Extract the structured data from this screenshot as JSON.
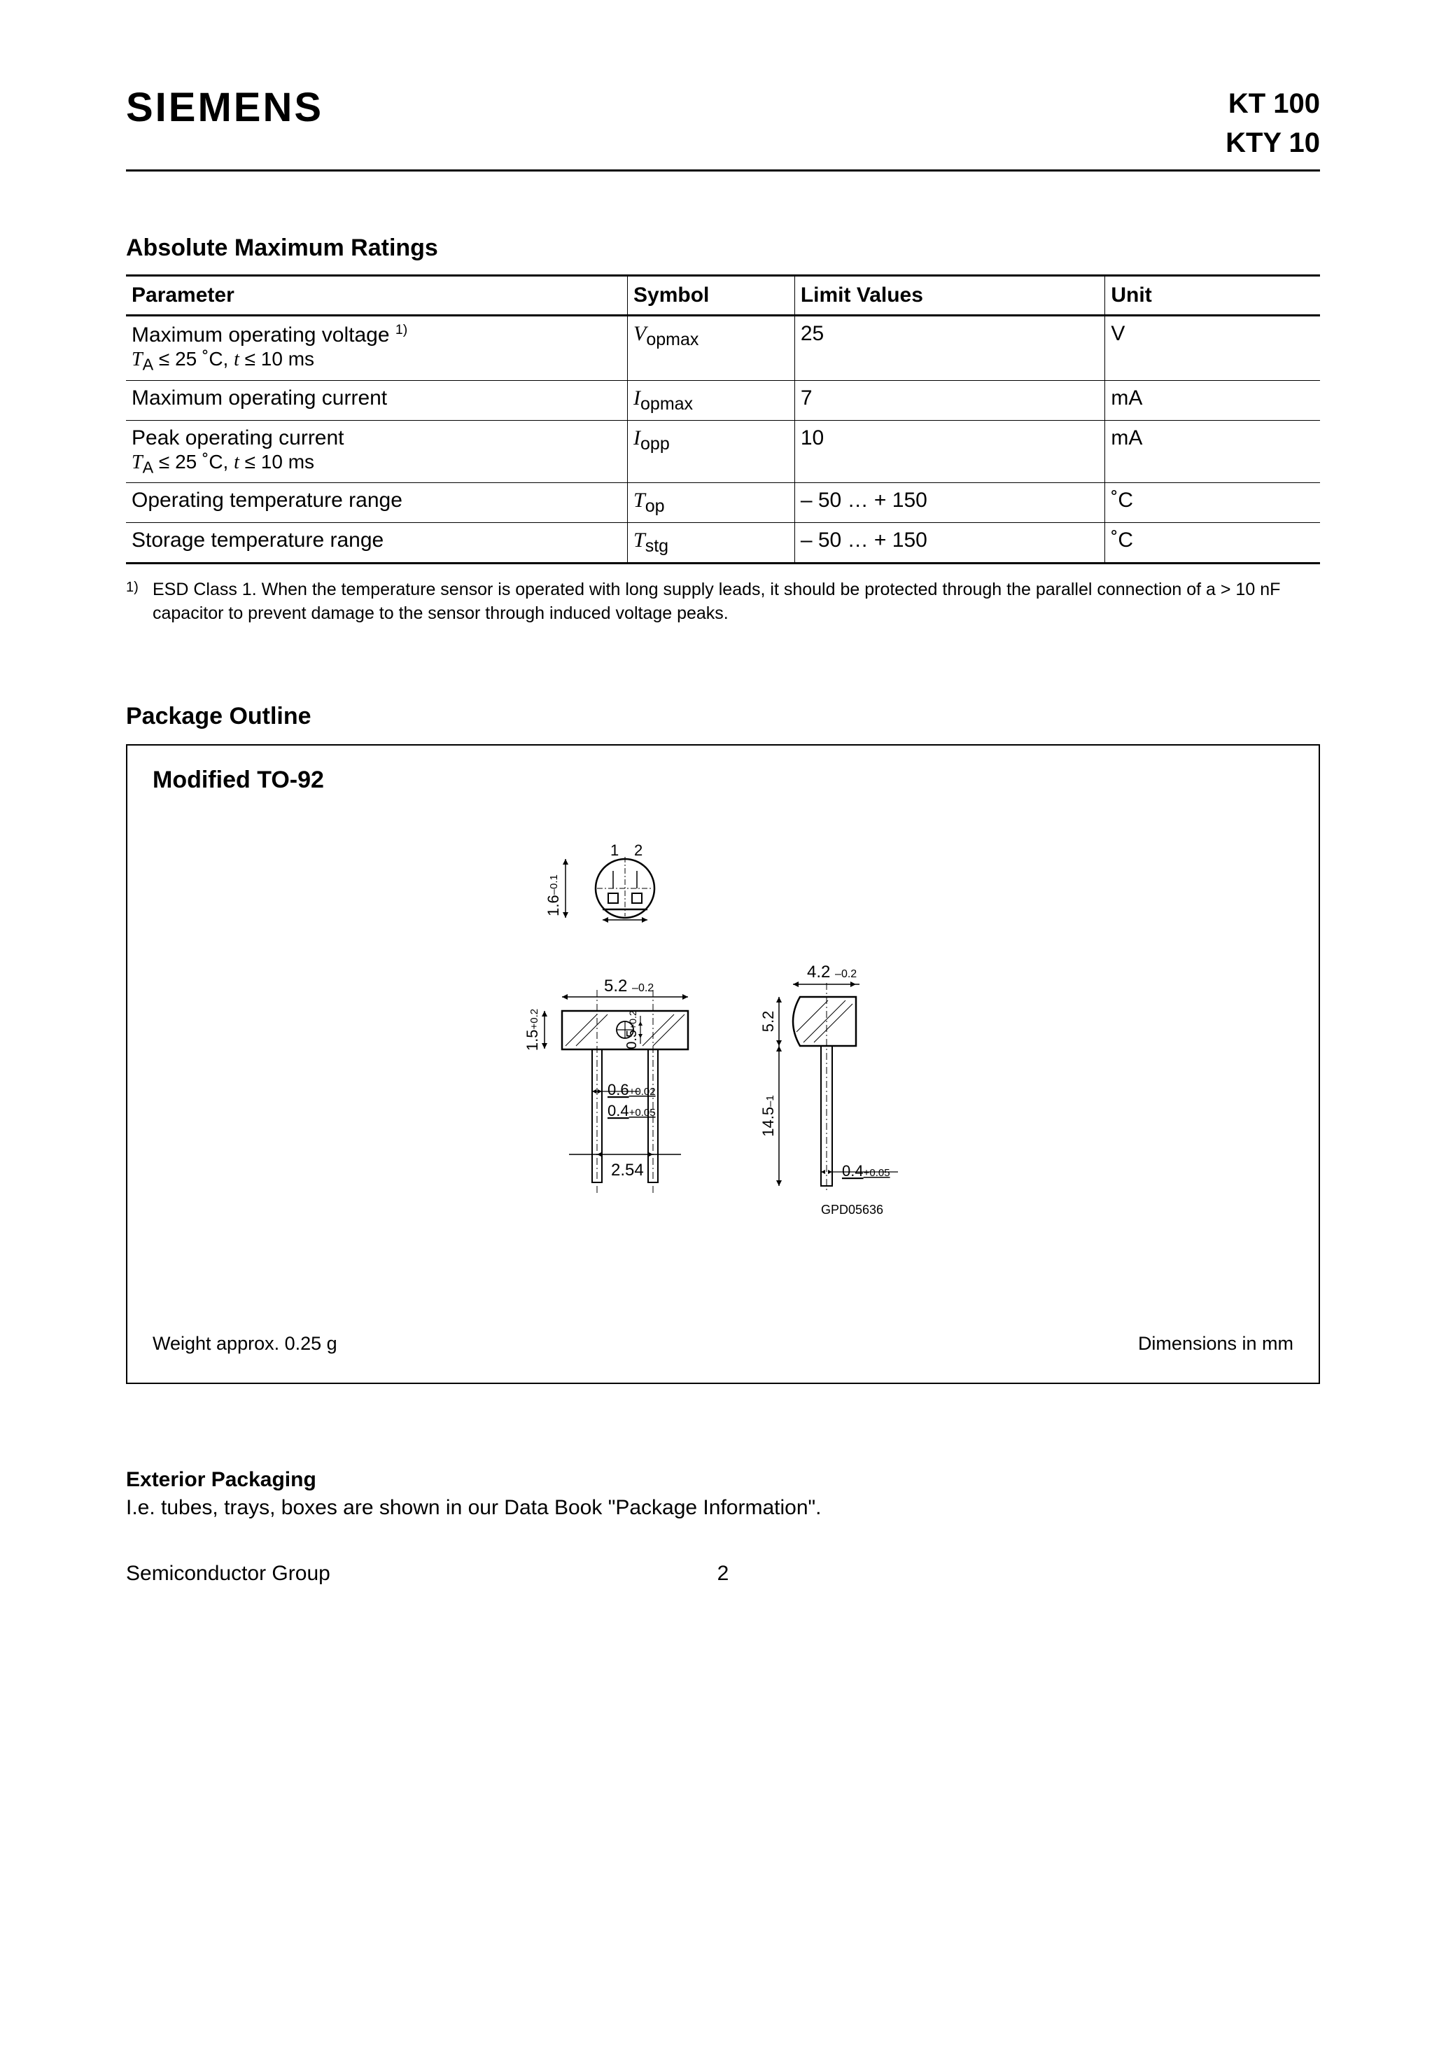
{
  "header": {
    "logo": "SIEMENS",
    "part1": "KT 100",
    "part2": "KTY 10"
  },
  "ratings": {
    "title": "Absolute Maximum Ratings",
    "columns": [
      "Parameter",
      "Symbol",
      "Limit Values",
      "Unit"
    ],
    "rows": [
      {
        "param_line1": "Maximum operating voltage ",
        "param_sup": "1)",
        "param_line2_html": "T<sub>A</sub> ≤ 25 ˚C, t ≤ 10 ms",
        "symbol_base": "V",
        "symbol_sub": "opmax",
        "limit": "25",
        "unit": "V"
      },
      {
        "param_line1": "Maximum operating current",
        "param_sup": "",
        "param_line2_html": "",
        "symbol_base": "I",
        "symbol_sub": "opmax",
        "limit": "7",
        "unit": "mA"
      },
      {
        "param_line1": "Peak operating current",
        "param_sup": "",
        "param_line2_html": "T<sub>A</sub> ≤ 25 ˚C, t ≤ 10 ms",
        "symbol_base": "I",
        "symbol_sub": "opp",
        "limit": "10",
        "unit": "mA"
      },
      {
        "param_line1": "Operating temperature range",
        "param_sup": "",
        "param_line2_html": "",
        "symbol_base": "T",
        "symbol_sub": "op",
        "limit": "– 50 … + 150",
        "unit": "˚C"
      },
      {
        "param_line1": "Storage temperature range",
        "param_sup": "",
        "param_line2_html": "",
        "symbol_base": "T",
        "symbol_sub": "stg",
        "limit": "– 50 … + 150",
        "unit": "˚C"
      }
    ],
    "footnote_num": "1)",
    "footnote_text": "ESD Class 1. When the temperature sensor is operated with long supply leads, it should be protected through the parallel connection of a > 10 nF capacitor to prevent damage to the sensor through induced voltage peaks."
  },
  "package": {
    "section_title": "Package Outline",
    "box_title": "Modified TO-92",
    "weight": "Weight approx. 0.25 g",
    "dim_note": "Dimensions in mm",
    "drawing": {
      "pin1": "1",
      "pin2": "2",
      "top_dim": "1.6",
      "top_tol": "–0.1",
      "body_w": "5.2",
      "body_w_tol": "–0.2",
      "body_h": "1.5",
      "body_h_tol": "+0.2",
      "center_h": "0.5",
      "center_h_tol": "+0.2",
      "lead_w1": "0.6",
      "lead_w1_tol": "+0.02",
      "lead_w2": "0.4",
      "lead_w2_tol": "+0.05",
      "pitch": "2.54",
      "side_total": "4.2",
      "side_total_tol": "–0.2",
      "side_body": "5.2",
      "side_lead": "14.5",
      "side_lead_tol": "–1",
      "side_thick": "0.4",
      "side_thick_tol": "+0.05",
      "code": "GPD05636"
    }
  },
  "exterior": {
    "title": "Exterior Packaging",
    "text": "I.e. tubes, trays, boxes are shown in our Data Book \"Package Information\"."
  },
  "footer": {
    "left": "Semiconductor Group",
    "page": "2"
  },
  "style": {
    "text_color": "#000000",
    "background": "#ffffff",
    "rule_color": "#000000",
    "font_family": "Arial, Helvetica, sans-serif"
  }
}
